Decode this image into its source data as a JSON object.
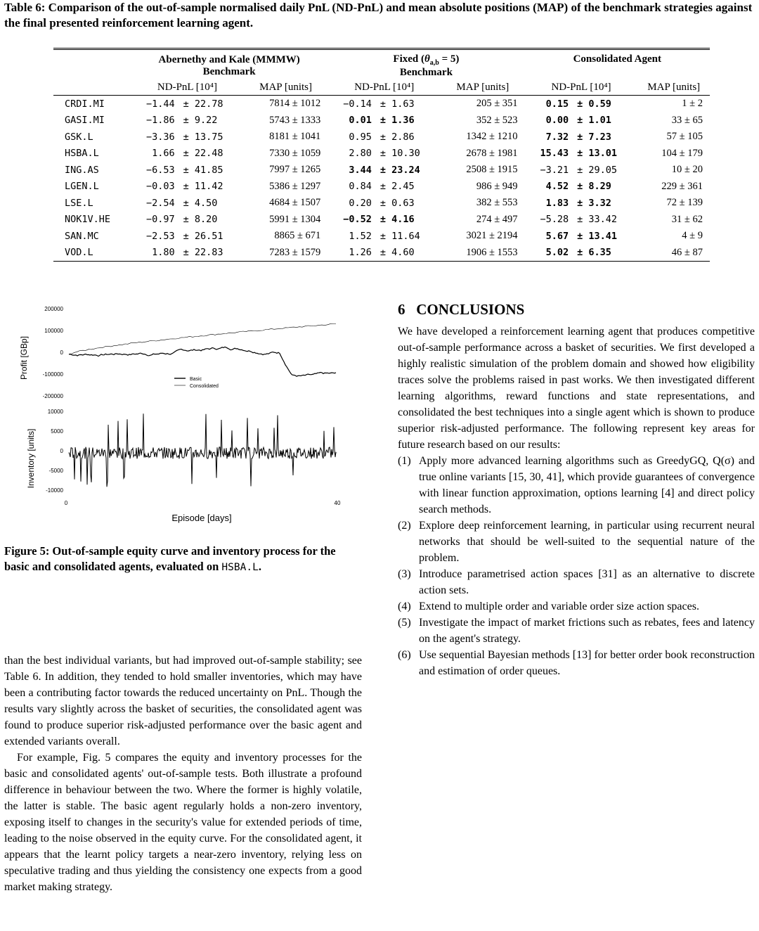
{
  "table6": {
    "caption": "Table 6: Comparison of the out-of-sample normalised daily PnL (ND-PnL) and mean absolute positions (MAP) of the benchmark strategies against the final presented reinforcement learning agent.",
    "groups": [
      "Abernethy and Kale (MMMW)",
      "Fixed (θa,b = 5)",
      "Consolidated Agent"
    ],
    "group_sublabel": "Benchmark",
    "col_ndpnl": "ND-PnL [10⁴]",
    "col_map": "MAP [units]",
    "rows": [
      {
        "sec": "CRDI.MI",
        "ak": [
          "−1.44",
          "± 22.78",
          "7814 ± 1012"
        ],
        "fx": [
          "−0.14",
          "± 1.63",
          "205 ± 351"
        ],
        "ca": [
          "0.15",
          "± 0.59",
          "1 ± 2"
        ]
      },
      {
        "sec": "GASI.MI",
        "ak": [
          "−1.86",
          "± 9.22",
          "5743 ± 1333"
        ],
        "fx": [
          "0.01",
          "± 1.36",
          "352 ± 523"
        ],
        "ca": [
          "0.00",
          "± 1.01",
          "33 ± 65"
        ]
      },
      {
        "sec": "GSK.L",
        "ak": [
          "−3.36",
          "± 13.75",
          "8181 ± 1041"
        ],
        "fx": [
          "0.95",
          "± 2.86",
          "1342 ± 1210"
        ],
        "ca": [
          "7.32",
          "± 7.23",
          "57 ± 105"
        ]
      },
      {
        "sec": "HSBA.L",
        "ak": [
          "1.66",
          "± 22.48",
          "7330 ± 1059"
        ],
        "fx": [
          "2.80",
          "± 10.30",
          "2678 ± 1981"
        ],
        "ca": [
          "15.43",
          "± 13.01",
          "104 ± 179"
        ]
      },
      {
        "sec": "ING.AS",
        "ak": [
          "−6.53",
          "± 41.85",
          "7997 ± 1265"
        ],
        "fx": [
          "3.44",
          "± 23.24",
          "2508 ± 1915"
        ],
        "ca": [
          "−3.21",
          "± 29.05",
          "10 ± 20"
        ]
      },
      {
        "sec": "LGEN.L",
        "ak": [
          "−0.03",
          "± 11.42",
          "5386 ± 1297"
        ],
        "fx": [
          "0.84",
          "± 2.45",
          "986 ± 949"
        ],
        "ca": [
          "4.52",
          "± 8.29",
          "229 ± 361"
        ]
      },
      {
        "sec": "LSE.L",
        "ak": [
          "−2.54",
          "± 4.50",
          "4684 ± 1507"
        ],
        "fx": [
          "0.20",
          "± 0.63",
          "382 ± 553"
        ],
        "ca": [
          "1.83",
          "± 3.32",
          "72 ± 139"
        ]
      },
      {
        "sec": "NOK1V.HE",
        "ak": [
          "−0.97",
          "± 8.20",
          "5991 ± 1304"
        ],
        "fx": [
          "−0.52",
          "± 4.16",
          "274 ± 497"
        ],
        "ca": [
          "−5.28",
          "± 33.42",
          "31 ± 62"
        ]
      },
      {
        "sec": "SAN.MC",
        "ak": [
          "−2.53",
          "± 26.51",
          "8865 ± 671"
        ],
        "fx": [
          "1.52",
          "± 11.64",
          "3021 ± 2194"
        ],
        "ca": [
          "5.67",
          "± 13.41",
          "4 ± 9"
        ]
      },
      {
        "sec": "VOD.L",
        "ak": [
          "1.80",
          "± 22.83",
          "7283 ± 1579"
        ],
        "fx": [
          "1.26",
          "± 4.60",
          "1906 ± 1553"
        ],
        "ca": [
          "5.02",
          "± 6.35",
          "46 ± 87"
        ]
      }
    ]
  },
  "figure5": {
    "caption_text": "Figure 5: Out-of-sample equity curve and inventory process for the basic and consolidated agents, evaluated on ",
    "caption_code": "HSBA.L",
    "caption_end": ".",
    "profit_ylabel": "Profit [GBp]",
    "inventory_ylabel": "Inventory [units]",
    "xlabel": "Episode [days]",
    "legend_basic": "Basic",
    "legend_consolidated": "Consolidated",
    "profit_ticks": [
      "200000",
      "100000",
      "0",
      "-100000",
      "-200000"
    ],
    "inventory_ticks": [
      "10000",
      "5000",
      "0",
      "-5000",
      "-10000"
    ],
    "x_ticks": [
      "0",
      "40"
    ]
  },
  "left_text": {
    "p1": "than the best individual variants, but had improved out-of-sample stability; see Table 6. In addition, they tended to hold smaller inventories, which may have been a contributing factor towards the reduced uncertainty on PnL. Though the results vary slightly across the basket of securities, the consolidated agent was found to produce superior risk-adjusted performance over the basic agent and extended variants overall.",
    "p2": "For example, Fig. 5 compares the equity and inventory processes for the basic and consolidated agents' out-of-sample tests. Both illustrate a profound difference in behaviour between the two. Where the former is highly volatile, the latter is stable. The basic agent regularly holds a non-zero inventory, exposing itself to changes in the security's value for extended periods of time, leading to the noise observed in the equity curve. For the consolidated agent, it appears that the learnt policy targets a near-zero inventory, relying less on speculative trading and thus yielding the consistency one expects from a good market making strategy."
  },
  "section6": {
    "heading": "6   CONCLUSIONS",
    "intro": "We have developed a reinforcement learning agent that produces competitive out-of-sample performance across a basket of securities. We first developed a highly realistic simulation of the problem domain and showed how eligibility traces solve the problems raised in past works. We then investigated different learning algorithms, reward functions and state representations, and consolidated the best techniques into a single agent which is shown to produce superior risk-adjusted performance. The following represent key areas for future research based on our results:",
    "items": [
      {
        "n": "(1)",
        "t": "Apply more advanced learning algorithms such as GreedyGQ, Q(σ) and true online variants [15, 30, 41], which provide guarantees of convergence with linear function approximation, options learning [4] and direct policy search methods."
      },
      {
        "n": "(2)",
        "t": "Explore deep reinforcement learning, in particular using recurrent neural networks that should be well-suited to the sequential nature of the problem."
      },
      {
        "n": "(3)",
        "t": "Introduce parametrised action spaces [31] as an alternative to discrete action sets."
      },
      {
        "n": "(4)",
        "t": "Extend to multiple order and variable order size action spaces."
      },
      {
        "n": "(5)",
        "t": "Investigate the impact of market frictions such as rebates, fees and latency on the agent's strategy."
      },
      {
        "n": "(6)",
        "t": "Use sequential Bayesian methods [13] for better order book reconstruction and estimation of order queues."
      }
    ]
  }
}
